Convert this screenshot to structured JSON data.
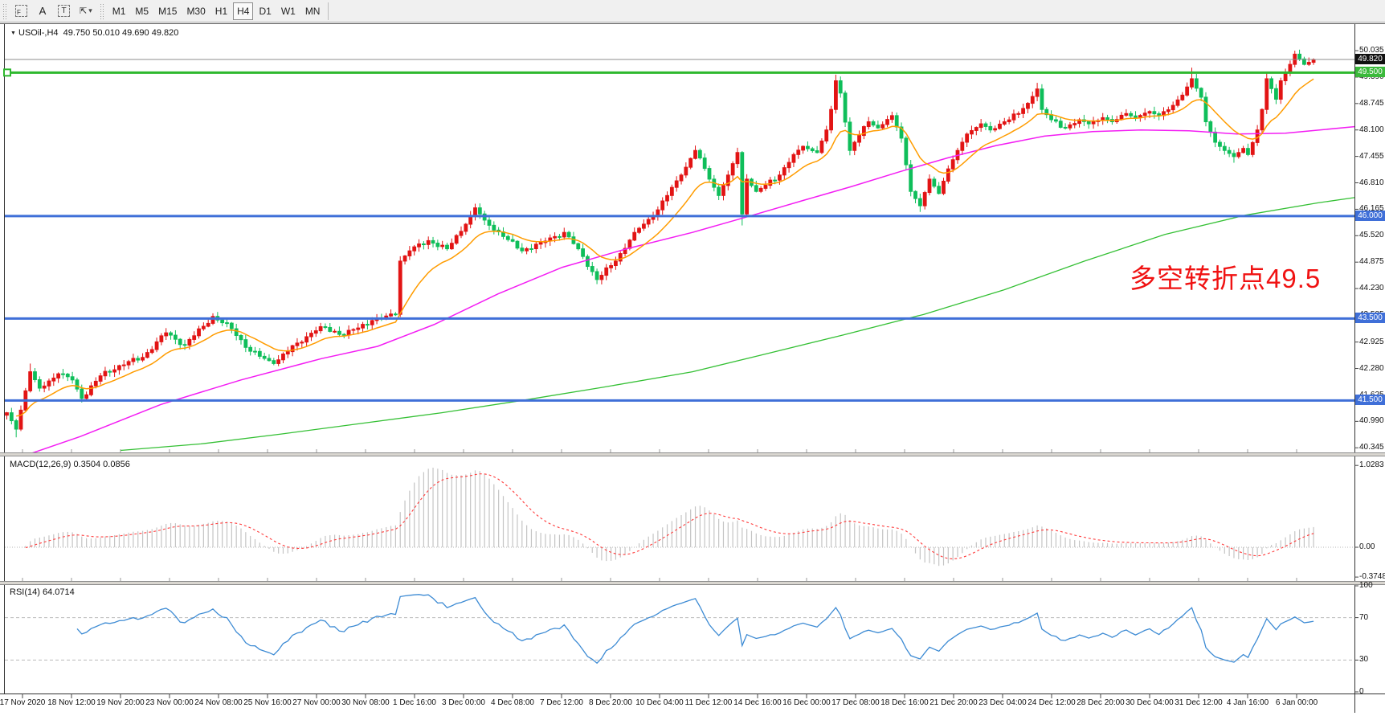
{
  "toolbar": {
    "tools": [
      {
        "name": "selection-tool",
        "glyph": "F"
      },
      {
        "name": "label-tool",
        "glyph": "A"
      },
      {
        "name": "text-tool",
        "glyph": "T"
      },
      {
        "name": "arrows-tool",
        "glyph": "⇱"
      }
    ],
    "dropdown_caret": "▾",
    "timeframes": [
      "M1",
      "M5",
      "M15",
      "M30",
      "H1",
      "H4",
      "D1",
      "W1",
      "MN"
    ],
    "active_timeframe": "H4"
  },
  "chart": {
    "collapse_arrow": "▼",
    "title_line": "USOil-,H4  49.750 50.010 49.690 49.820"
  },
  "panels": {
    "macd_label": "MACD(12,26,9) 0.3504 0.0856",
    "rsi_label": "RSI(14) 64.0714"
  },
  "annotation": {
    "text": "多空转折点49.5",
    "color": "#f01212"
  },
  "axes": {
    "price_ticks": [
      "50.035",
      "49.390",
      "48.745",
      "48.100",
      "47.455",
      "46.810",
      "46.165",
      "45.520",
      "44.875",
      "44.230",
      "43.585",
      "42.925",
      "42.280",
      "41.625",
      "40.990",
      "40.345"
    ],
    "price_badges": [
      {
        "label": "49.820",
        "price": 49.82,
        "bg": "#111111"
      },
      {
        "label": "49.500",
        "price": 49.5,
        "bg": "#3bb93b"
      },
      {
        "label": "46.000",
        "price": 46.0,
        "bg": "#3f6fd8"
      },
      {
        "label": "43.500",
        "price": 43.5,
        "bg": "#3f6fd8"
      },
      {
        "label": "41.500",
        "price": 41.5,
        "bg": "#3f6fd8"
      }
    ],
    "macd_ticks": [
      {
        "label": "1.0283",
        "value": 1.0283
      },
      {
        "label": "0.00",
        "value": 0
      },
      {
        "label": "-0.3748",
        "value": -0.3748
      }
    ],
    "rsi_ticks": [
      {
        "label": "100",
        "value": 100
      },
      {
        "label": "70",
        "value": 70
      },
      {
        "label": "30",
        "value": 30
      },
      {
        "label": "0",
        "value": 0
      }
    ],
    "time_labels": [
      "17 Nov 2020",
      "18 Nov 12:00",
      "19 Nov 20:00",
      "23 Nov 00:00",
      "24 Nov 08:00",
      "25 Nov 16:00",
      "27 Nov 00:00",
      "30 Nov 08:00",
      "1 Dec 16:00",
      "3 Dec 00:00",
      "4 Dec 08:00",
      "7 Dec 12:00",
      "8 Dec 20:00",
      "10 Dec 04:00",
      "11 Dec 12:00",
      "14 Dec 16:00",
      "16 Dec 00:00",
      "17 Dec 08:00",
      "18 Dec 16:00",
      "21 Dec 20:00",
      "23 Dec 04:00",
      "24 Dec 12:00",
      "28 Dec 20:00",
      "30 Dec 04:00",
      "31 Dec 12:00",
      "4 Jan 16:00",
      "6 Jan 00:00"
    ]
  },
  "chart_data": {
    "type": "candlestick",
    "symbol": "USOil-",
    "timeframe": "H4",
    "current": {
      "open": 49.75,
      "high": 50.01,
      "low": 49.69,
      "close": 49.82
    },
    "ylim": [
      40.25,
      50.6
    ],
    "price_step": 0.645,
    "up_color": "#e21414",
    "down_color": "#0fbe5a",
    "close_waypoints": [
      [
        0,
        41.2
      ],
      [
        2,
        40.8
      ],
      [
        5,
        42.2
      ],
      [
        7,
        41.8
      ],
      [
        11,
        42.15
      ],
      [
        14,
        42.0
      ],
      [
        16,
        41.55
      ],
      [
        20,
        42.1
      ],
      [
        24,
        42.35
      ],
      [
        29,
        42.55
      ],
      [
        34,
        43.15
      ],
      [
        38,
        42.85
      ],
      [
        44,
        43.55
      ],
      [
        48,
        43.25
      ],
      [
        52,
        42.7
      ],
      [
        57,
        42.4
      ],
      [
        62,
        42.9
      ],
      [
        67,
        43.3
      ],
      [
        72,
        43.1
      ],
      [
        78,
        43.45
      ],
      [
        83,
        43.6
      ],
      [
        84,
        44.9
      ],
      [
        86,
        45.15
      ],
      [
        90,
        45.4
      ],
      [
        94,
        45.2
      ],
      [
        98,
        45.8
      ],
      [
        100,
        46.2
      ],
      [
        102,
        45.9
      ],
      [
        106,
        45.5
      ],
      [
        110,
        45.15
      ],
      [
        114,
        45.35
      ],
      [
        119,
        45.6
      ],
      [
        122,
        45.2
      ],
      [
        126,
        44.45
      ],
      [
        130,
        44.9
      ],
      [
        134,
        45.6
      ],
      [
        138,
        46.0
      ],
      [
        141,
        46.5
      ],
      [
        144,
        47.0
      ],
      [
        147,
        47.6
      ],
      [
        150,
        46.9
      ],
      [
        152,
        46.5
      ],
      [
        154,
        47.0
      ],
      [
        156,
        47.55
      ],
      [
        157,
        46.05
      ],
      [
        158,
        46.9
      ],
      [
        160,
        46.6
      ],
      [
        162,
        46.75
      ],
      [
        165,
        47.0
      ],
      [
        168,
        47.5
      ],
      [
        170,
        47.7
      ],
      [
        173,
        47.55
      ],
      [
        175,
        48.1
      ],
      [
        176,
        48.6
      ],
      [
        177,
        49.3
      ],
      [
        178,
        49.0
      ],
      [
        180,
        47.6
      ],
      [
        181,
        47.8
      ],
      [
        184,
        48.3
      ],
      [
        186,
        48.15
      ],
      [
        189,
        48.45
      ],
      [
        191,
        47.9
      ],
      [
        193,
        46.6
      ],
      [
        195,
        46.25
      ],
      [
        197,
        46.9
      ],
      [
        199,
        46.55
      ],
      [
        201,
        47.15
      ],
      [
        203,
        47.6
      ],
      [
        205,
        48.0
      ],
      [
        208,
        48.25
      ],
      [
        210,
        48.1
      ],
      [
        213,
        48.3
      ],
      [
        216,
        48.5
      ],
      [
        218,
        48.75
      ],
      [
        220,
        49.1
      ],
      [
        221,
        48.6
      ],
      [
        223,
        48.35
      ],
      [
        226,
        48.15
      ],
      [
        229,
        48.35
      ],
      [
        231,
        48.25
      ],
      [
        234,
        48.4
      ],
      [
        236,
        48.3
      ],
      [
        239,
        48.5
      ],
      [
        241,
        48.4
      ],
      [
        244,
        48.55
      ],
      [
        246,
        48.45
      ],
      [
        249,
        48.7
      ],
      [
        251,
        48.95
      ],
      [
        253,
        49.35
      ],
      [
        255,
        48.9
      ],
      [
        256,
        48.3
      ],
      [
        258,
        47.8
      ],
      [
        260,
        47.6
      ],
      [
        262,
        47.45
      ],
      [
        264,
        47.65
      ],
      [
        265,
        47.5
      ],
      [
        267,
        48.1
      ],
      [
        268,
        48.6
      ],
      [
        269,
        49.35
      ],
      [
        271,
        48.85
      ],
      [
        272,
        49.3
      ],
      [
        274,
        49.7
      ],
      [
        275,
        49.95
      ],
      [
        277,
        49.7
      ],
      [
        278,
        49.75
      ],
      [
        279,
        49.82
      ]
    ],
    "wick_highs": [
      [
        5,
        42.4
      ],
      [
        100,
        46.3
      ],
      [
        177,
        49.45
      ],
      [
        220,
        49.25
      ],
      [
        253,
        49.62
      ],
      [
        269,
        49.5
      ],
      [
        275,
        50.035
      ]
    ],
    "wick_lows": [
      [
        2,
        40.6
      ],
      [
        16,
        41.45
      ],
      [
        157,
        45.77
      ],
      [
        195,
        46.1
      ],
      [
        262,
        47.3
      ]
    ],
    "ma_orange_period": 13,
    "ma_orange_color": "#ff9c00",
    "ma_magenta_color": "#f31df3",
    "ma_magenta": [
      [
        8,
        40.0
      ],
      [
        100,
        40.62
      ],
      [
        200,
        41.4
      ],
      [
        300,
        42.0
      ],
      [
        400,
        42.52
      ],
      [
        470,
        42.82
      ],
      [
        540,
        43.35
      ],
      [
        620,
        44.1
      ],
      [
        700,
        44.75
      ],
      [
        780,
        45.2
      ],
      [
        862,
        45.6
      ],
      [
        930,
        45.98
      ],
      [
        1000,
        46.38
      ],
      [
        1060,
        46.72
      ],
      [
        1120,
        47.08
      ],
      [
        1180,
        47.42
      ],
      [
        1240,
        47.72
      ],
      [
        1300,
        47.95
      ],
      [
        1360,
        48.06
      ],
      [
        1420,
        48.1
      ],
      [
        1480,
        48.08
      ],
      [
        1540,
        48.0
      ],
      [
        1600,
        48.02
      ],
      [
        1686,
        48.18
      ]
    ],
    "ma_green_color": "#35c035",
    "ma_green": [
      [
        150,
        40.28
      ],
      [
        250,
        40.44
      ],
      [
        350,
        40.68
      ],
      [
        450,
        40.94
      ],
      [
        550,
        41.2
      ],
      [
        650,
        41.5
      ],
      [
        750,
        41.82
      ],
      [
        862,
        42.2
      ],
      [
        950,
        42.62
      ],
      [
        1050,
        43.1
      ],
      [
        1150,
        43.6
      ],
      [
        1250,
        44.2
      ],
      [
        1350,
        44.9
      ],
      [
        1450,
        45.55
      ],
      [
        1550,
        46.02
      ],
      [
        1640,
        46.32
      ],
      [
        1686,
        46.45
      ]
    ],
    "hlines": [
      {
        "name": "hline-41-500",
        "price": 41.5,
        "color": "#3f6fd8",
        "width": 3
      },
      {
        "name": "hline-43-500",
        "price": 43.5,
        "color": "#3f6fd8",
        "width": 3
      },
      {
        "name": "hline-46-000",
        "price": 46.0,
        "color": "#3f6fd8",
        "width": 3
      },
      {
        "name": "hline-49-500",
        "price": 49.5,
        "color": "#2eb82e",
        "width": 3,
        "handle": true
      },
      {
        "name": "current-price-line",
        "price": 49.82,
        "color": "#8c8c8c",
        "width": 1
      }
    ],
    "macd": {
      "params": "12,26,9",
      "value": 0.3504,
      "signal_value": 0.0856,
      "ylim": [
        -0.3748,
        1.0283
      ],
      "hist_color": "#c4c4c4",
      "signal_color": "#ff3b3b"
    },
    "rsi": {
      "period": 14,
      "value": 64.0714,
      "levels": [
        70,
        30
      ],
      "ylim": [
        0,
        100
      ],
      "line_color": "#3d8bd4"
    }
  }
}
